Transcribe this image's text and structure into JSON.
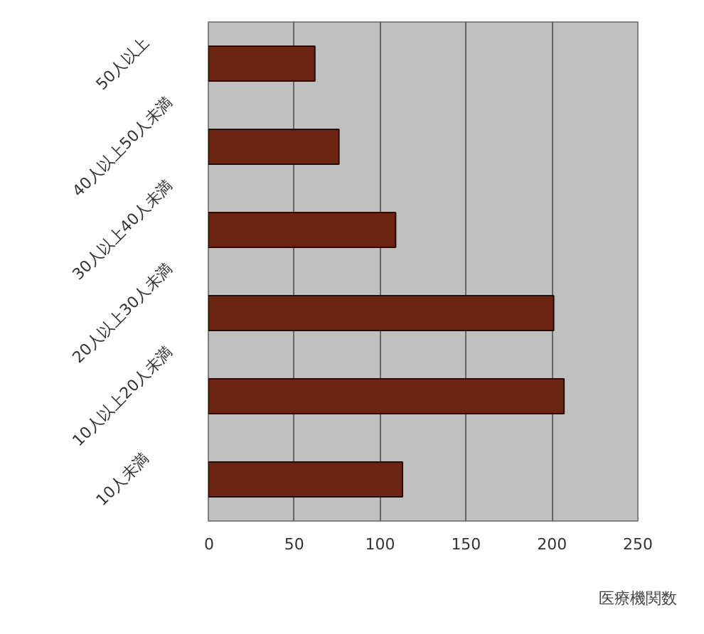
{
  "chart_data": {
    "type": "bar",
    "orientation": "horizontal",
    "xlabel": "医療機関数",
    "categories": [
      "50人以上",
      "40人以上50人未満",
      "30人以上40人未満",
      "20人以上30人未満",
      "10人以上20人未満",
      "10人未満"
    ],
    "values": [
      62,
      76,
      109,
      201,
      207,
      113
    ],
    "color": "#6b2412",
    "xlim": [
      0,
      250
    ],
    "xticks": [
      0,
      50,
      100,
      150,
      200,
      250
    ],
    "grid": "x"
  }
}
